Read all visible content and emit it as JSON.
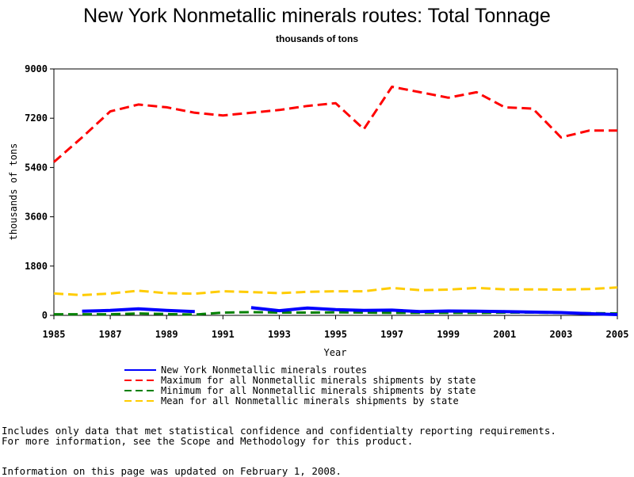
{
  "chart_data": {
    "type": "line",
    "title": "New York Nonmetallic minerals routes: Total Tonnage",
    "subtitle": "thousands of tons",
    "xlabel": "Year",
    "ylabel": "thousands of tons",
    "xlim": [
      1985,
      2005
    ],
    "ylim": [
      0,
      9000
    ],
    "xticks": [
      1985,
      1987,
      1989,
      1991,
      1993,
      1995,
      1997,
      1999,
      2001,
      2003,
      2005
    ],
    "yticks": [
      0,
      1800,
      3600,
      5400,
      7200,
      9000
    ],
    "grid": false,
    "legend_position": "bottom",
    "x": [
      1985,
      1986,
      1987,
      1988,
      1989,
      1990,
      1991,
      1992,
      1993,
      1994,
      1995,
      1996,
      1997,
      1998,
      1999,
      2000,
      2001,
      2002,
      2003,
      2004,
      2005
    ],
    "series": [
      {
        "name": "New York Nonmetallic minerals routes",
        "color": "#0000ff",
        "dash": "solid",
        "values": [
          null,
          150,
          180,
          240,
          180,
          140,
          null,
          280,
          170,
          270,
          210,
          180,
          190,
          140,
          160,
          150,
          140,
          120,
          100,
          60,
          30
        ]
      },
      {
        "name": "Maximum for all Nonmetallic minerals shipments by state",
        "color": "#ff0000",
        "dash": "dashed",
        "values": [
          5600,
          6500,
          7450,
          7700,
          7600,
          7400,
          7300,
          7400,
          7500,
          7650,
          7750,
          6800,
          8350,
          8150,
          7950,
          8150,
          7600,
          7550,
          6500,
          6750,
          6750
        ]
      },
      {
        "name": "Minimum for all Nonmetallic minerals shipments by state",
        "color": "#008000",
        "dash": "dashed",
        "values": [
          40,
          40,
          40,
          70,
          50,
          30,
          100,
          120,
          100,
          100,
          110,
          100,
          90,
          90,
          90,
          90,
          100,
          100,
          90,
          80,
          70
        ]
      },
      {
        "name": "Mean for all Nonmetallic minerals shipments by state",
        "color": "#ffcc00",
        "dash": "dashed",
        "values": [
          800,
          740,
          800,
          900,
          810,
          790,
          880,
          850,
          810,
          860,
          880,
          880,
          1000,
          920,
          940,
          1000,
          950,
          950,
          940,
          960,
          1020
        ]
      }
    ]
  },
  "footnotes": {
    "line1": "Includes only data that met statistical confidence and confidentialty reporting requirements.",
    "line2": "For more information, see the Scope and Methodology for this product.",
    "updated": "Information on this page was updated on February 1, 2008."
  }
}
